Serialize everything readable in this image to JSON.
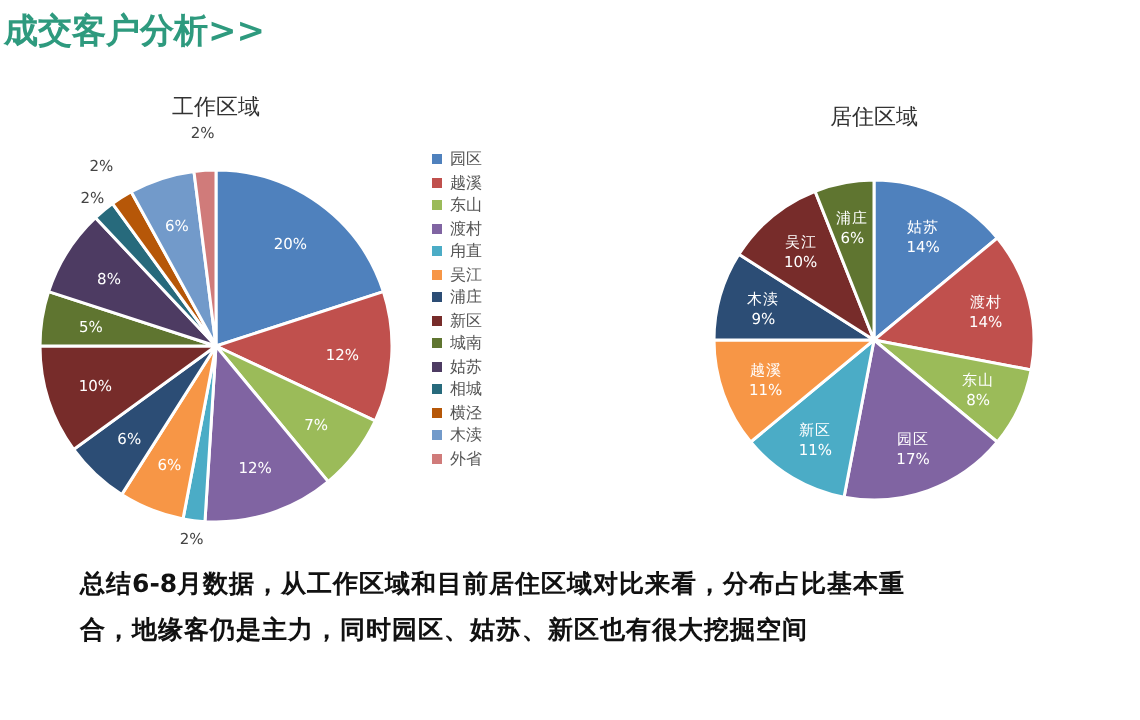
{
  "chart_data": [
    {
      "type": "other",
      "title": "成交客户分析>>",
      "annotations": [
        "总结6-8月数据，从工作区域和目前居住区域对比来看，分布占比基本重合，地缘客仍是主力，同时园区、姑苏、新区也有很大挖掘空间"
      ]
    },
    {
      "type": "pie",
      "title": "工作区域",
      "legend": "right",
      "categories": [
        "园区",
        "越溪",
        "东山",
        "渡村",
        "甪直",
        "吴江",
        "浦庄",
        "新区",
        "城南",
        "姑苏",
        "相城",
        "横泾",
        "木渎",
        "外省"
      ],
      "values": [
        20,
        12,
        7,
        12,
        2,
        6,
        6,
        10,
        5,
        8,
        2,
        2,
        6,
        2
      ],
      "value_labels": [
        "20%",
        "12%",
        "7%",
        "12%",
        "2%",
        "6%",
        "6%",
        "10%",
        "5%",
        "8%",
        "2%",
        "2%",
        "6%",
        "2%"
      ],
      "colors": [
        "#4f81bd",
        "#c0504d",
        "#9bbb59",
        "#8064a2",
        "#4bacc6",
        "#f79646",
        "#2c4d75",
        "#772c2a",
        "#5f7530",
        "#4d3b62",
        "#276a7c",
        "#b65708",
        "#729aca",
        "#d07b7a"
      ]
    },
    {
      "type": "pie",
      "title": "居住区域",
      "categories": [
        "姑苏",
        "渡村",
        "东山",
        "园区",
        "新区",
        "越溪",
        "木渎",
        "吴江",
        "浦庄"
      ],
      "values": [
        14,
        14,
        8,
        17,
        11,
        11,
        9,
        10,
        6
      ],
      "value_labels": [
        "14%",
        "14%",
        "8%",
        "17%",
        "11%",
        "11%",
        "9%",
        "10%",
        "6%"
      ],
      "colors": [
        "#4f81bd",
        "#c0504d",
        "#9bbb59",
        "#8064a2",
        "#4bacc6",
        "#f79646",
        "#2c4d75",
        "#772c2a",
        "#5f7530"
      ]
    }
  ]
}
